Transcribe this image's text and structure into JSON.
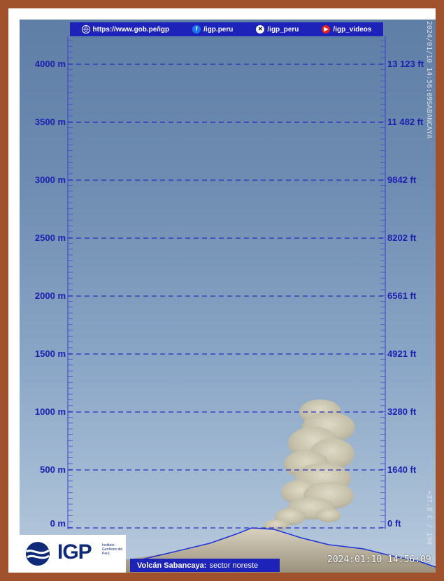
{
  "header": {
    "items": [
      {
        "icon": "globe-icon",
        "label": "https://www.gob.pe/igp"
      },
      {
        "icon": "facebook-icon",
        "label": "/igp.peru"
      },
      {
        "icon": "x-icon",
        "label": "/igp_peru"
      },
      {
        "icon": "youtube-icon",
        "label": "/igp_videos"
      }
    ]
  },
  "scale": {
    "meters": [
      "4000 m",
      "3500 m",
      "3000 m",
      "2500 m",
      "2000 m",
      "1500 m",
      "1000 m",
      "500 m",
      "0 m"
    ],
    "feet": [
      "13 123 ft",
      "11 482 ft",
      "9842 ft",
      "8202 ft",
      "6561 ft",
      "4921 ft",
      "3280 ft",
      "1640 ft",
      "0 ft"
    ]
  },
  "overlay": {
    "side_top": "2024/01/10 14:56:09SABANCAYA",
    "side_bottom": "+37.8 C / 194"
  },
  "footer": {
    "logo_text": "IGP",
    "logo_subtitle": "Instituto Geofísico del Perú",
    "station_name": "Volcán Sabancaya:",
    "station_sector": "sector noreste",
    "timestamp": "2024:01:10 14:56:09"
  },
  "colors": {
    "frame": "#a0522d",
    "scale_blue": "#1b1fb0",
    "bar_blue": "#1d22b8"
  }
}
